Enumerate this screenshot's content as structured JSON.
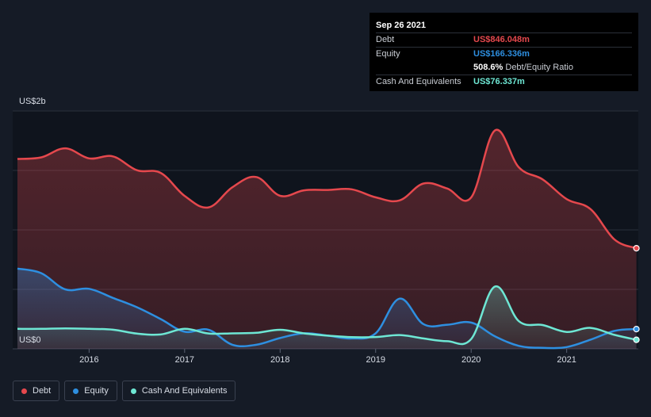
{
  "tooltip": {
    "date": "Sep 26 2021",
    "debt_label": "Debt",
    "debt_value": "US$846.048m",
    "equity_label": "Equity",
    "equity_value": "US$166.336m",
    "ratio_value": "508.6%",
    "ratio_label": "Debt/Equity Ratio",
    "cash_label": "Cash And Equivalents",
    "cash_value": "US$76.337m"
  },
  "legend": {
    "debt": "Debt",
    "equity": "Equity",
    "cash": "Cash And Equivalents"
  },
  "colors": {
    "debt": "#e5484d",
    "equity": "#2e8fe0",
    "cash": "#6ee7d4"
  },
  "chart_data": {
    "type": "area",
    "y_axis_labels": [
      "US$2b",
      "US$0"
    ],
    "ylim": [
      0,
      2000
    ],
    "x_ticks": [
      "2016",
      "2017",
      "2018",
      "2019",
      "2020",
      "2021"
    ],
    "x_tick_values": [
      2016,
      2017,
      2018,
      2019,
      2020,
      2021
    ],
    "xlim": [
      2015.2,
      2021.75
    ],
    "grid": true,
    "legend_position": "bottom-left",
    "series": [
      {
        "name": "Debt",
        "x": [
          2015.25,
          2015.5,
          2015.75,
          2016.0,
          2016.25,
          2016.5,
          2016.75,
          2017.0,
          2017.25,
          2017.5,
          2017.75,
          2018.0,
          2018.25,
          2018.5,
          2018.75,
          2019.0,
          2019.25,
          2019.5,
          2019.75,
          2020.0,
          2020.25,
          2020.5,
          2020.75,
          2021.0,
          2021.25,
          2021.5,
          2021.73
        ],
        "values": [
          1597,
          1610,
          1686,
          1601,
          1618,
          1502,
          1479,
          1286,
          1189,
          1359,
          1445,
          1287,
          1333,
          1336,
          1341,
          1274,
          1248,
          1390,
          1348,
          1273,
          1837,
          1526,
          1424,
          1259,
          1175,
          919,
          846
        ]
      },
      {
        "name": "Equity",
        "x": [
          2015.25,
          2015.5,
          2015.75,
          2016.0,
          2016.25,
          2016.5,
          2016.75,
          2017.0,
          2017.25,
          2017.5,
          2017.75,
          2018.0,
          2018.25,
          2018.5,
          2018.75,
          2019.0,
          2019.25,
          2019.5,
          2019.75,
          2020.0,
          2020.25,
          2020.5,
          2020.75,
          2021.0,
          2021.25,
          2021.5,
          2021.73
        ],
        "values": [
          675,
          636,
          500,
          505,
          428,
          350,
          250,
          144,
          160,
          34,
          34,
          91,
          131,
          111,
          87,
          130,
          422,
          208,
          203,
          221,
          105,
          25,
          8,
          15,
          77,
          151,
          166
        ]
      },
      {
        "name": "Cash And Equivalents",
        "x": [
          2015.25,
          2015.5,
          2015.75,
          2016.0,
          2016.25,
          2016.5,
          2016.75,
          2017.0,
          2017.25,
          2017.5,
          2017.75,
          2018.0,
          2018.25,
          2018.5,
          2018.75,
          2019.0,
          2019.25,
          2019.5,
          2019.75,
          2020.0,
          2020.25,
          2020.5,
          2020.75,
          2021.0,
          2021.25,
          2021.5,
          2021.73
        ],
        "values": [
          168,
          168,
          172,
          168,
          161,
          128,
          121,
          168,
          129,
          130,
          135,
          160,
          130,
          111,
          98,
          99,
          116,
          87,
          64,
          82,
          524,
          232,
          200,
          142,
          176,
          117,
          76
        ]
      }
    ]
  }
}
